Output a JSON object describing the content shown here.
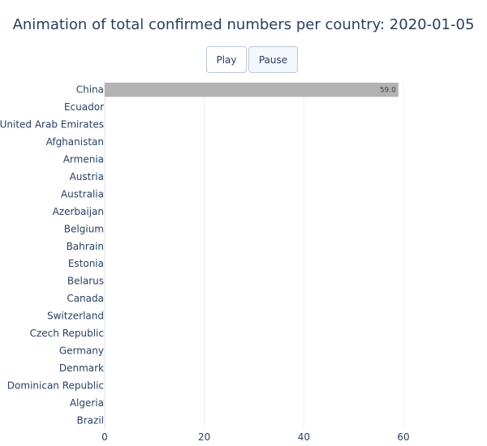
{
  "chart_data": {
    "type": "bar",
    "orientation": "horizontal",
    "title": "Animation of total confirmed numbers per country: 2020-01-05",
    "xlabel": "",
    "ylabel": "",
    "xlim": [
      0,
      60
    ],
    "x_ticks": [
      0,
      20,
      40,
      60
    ],
    "grid": true,
    "categories": [
      "China",
      "Ecuador",
      "United Arab Emirates",
      "Afghanistan",
      "Armenia",
      "Austria",
      "Australia",
      "Azerbaijan",
      "Belgium",
      "Bahrain",
      "Estonia",
      "Belarus",
      "Canada",
      "Switzerland",
      "Czech Republic",
      "Germany",
      "Denmark",
      "Dominican Republic",
      "Algeria",
      "Brazil"
    ],
    "values": [
      59,
      0,
      0,
      0,
      0,
      0,
      0,
      0,
      0,
      0,
      0,
      0,
      0,
      0,
      0,
      0,
      0,
      0,
      0,
      0
    ],
    "data_labels": [
      "59.0",
      "",
      "",
      "",
      "",
      "",
      "",
      "",
      "",
      "",
      "",
      "",
      "",
      "",
      "",
      "",
      "",
      "",
      "",
      ""
    ],
    "bar_color": "#b3b3b3"
  },
  "controls": {
    "play_label": "Play",
    "pause_label": "Pause"
  }
}
